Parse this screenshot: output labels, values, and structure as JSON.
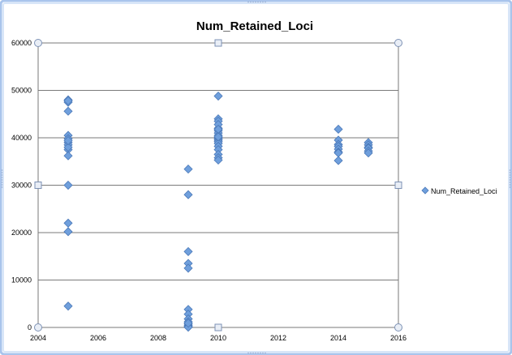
{
  "window": {
    "frame_color": "#a9c4ec",
    "frame_inner_color": "#d8e6f8",
    "resize_handle_color": "#9db3d6"
  },
  "chart_data": {
    "type": "scatter",
    "title": "Num_Retained_Loci",
    "xlabel": "",
    "ylabel": "",
    "xlim": [
      2004,
      2016
    ],
    "ylim": [
      0,
      60000
    ],
    "x_ticks": [
      2004,
      2006,
      2008,
      2010,
      2012,
      2014,
      2016
    ],
    "x_tick_labels": [
      "2004",
      "2006",
      "2008",
      "2010",
      "2012",
      "2014",
      "2016"
    ],
    "y_ticks": [
      0,
      10000,
      20000,
      30000,
      40000,
      50000,
      60000
    ],
    "y_tick_labels": [
      "0",
      "10000",
      "20000",
      "30000",
      "40000",
      "50000",
      "60000"
    ],
    "grid": "horizontal",
    "legend_position": "right",
    "marker_color": "#6f9fdc",
    "marker_edge_color": "#4a78b8",
    "series": [
      {
        "name": "Num_Retained_Loci",
        "x": [
          2005,
          2005,
          2005,
          2005,
          2005,
          2005,
          2005,
          2005,
          2005,
          2005,
          2005,
          2005,
          2005,
          2005,
          2005,
          2005,
          2009,
          2009,
          2009,
          2009,
          2009,
          2009,
          2009,
          2009,
          2009,
          2009,
          2009,
          2009,
          2009,
          2009,
          2009,
          2010,
          2010,
          2010,
          2010,
          2010,
          2010,
          2010,
          2010,
          2010,
          2010,
          2010,
          2010,
          2010,
          2010,
          2010,
          2010,
          2010,
          2010,
          2010,
          2010,
          2014,
          2014,
          2014,
          2014,
          2014,
          2014,
          2014,
          2014,
          2015,
          2015,
          2015,
          2015,
          2015,
          2015
        ],
        "y": [
          48000,
          47500,
          45600,
          40500,
          39800,
          39000,
          38500,
          37500,
          36200,
          30000,
          22000,
          20200,
          4500,
          47800,
          38000,
          39400,
          33400,
          28000,
          16000,
          13500,
          12500,
          3800,
          2800,
          1800,
          1200,
          700,
          400,
          200,
          100,
          50,
          900,
          48800,
          44000,
          43500,
          42000,
          41500,
          41000,
          40500,
          40000,
          39800,
          39500,
          39200,
          38800,
          38200,
          37500,
          36500,
          35800,
          35300,
          42800,
          40200,
          41800,
          41800,
          39500,
          38600,
          38200,
          37600,
          37000,
          36800,
          35200,
          39000,
          38500,
          38000,
          37800,
          37200,
          36800
        ]
      }
    ]
  }
}
